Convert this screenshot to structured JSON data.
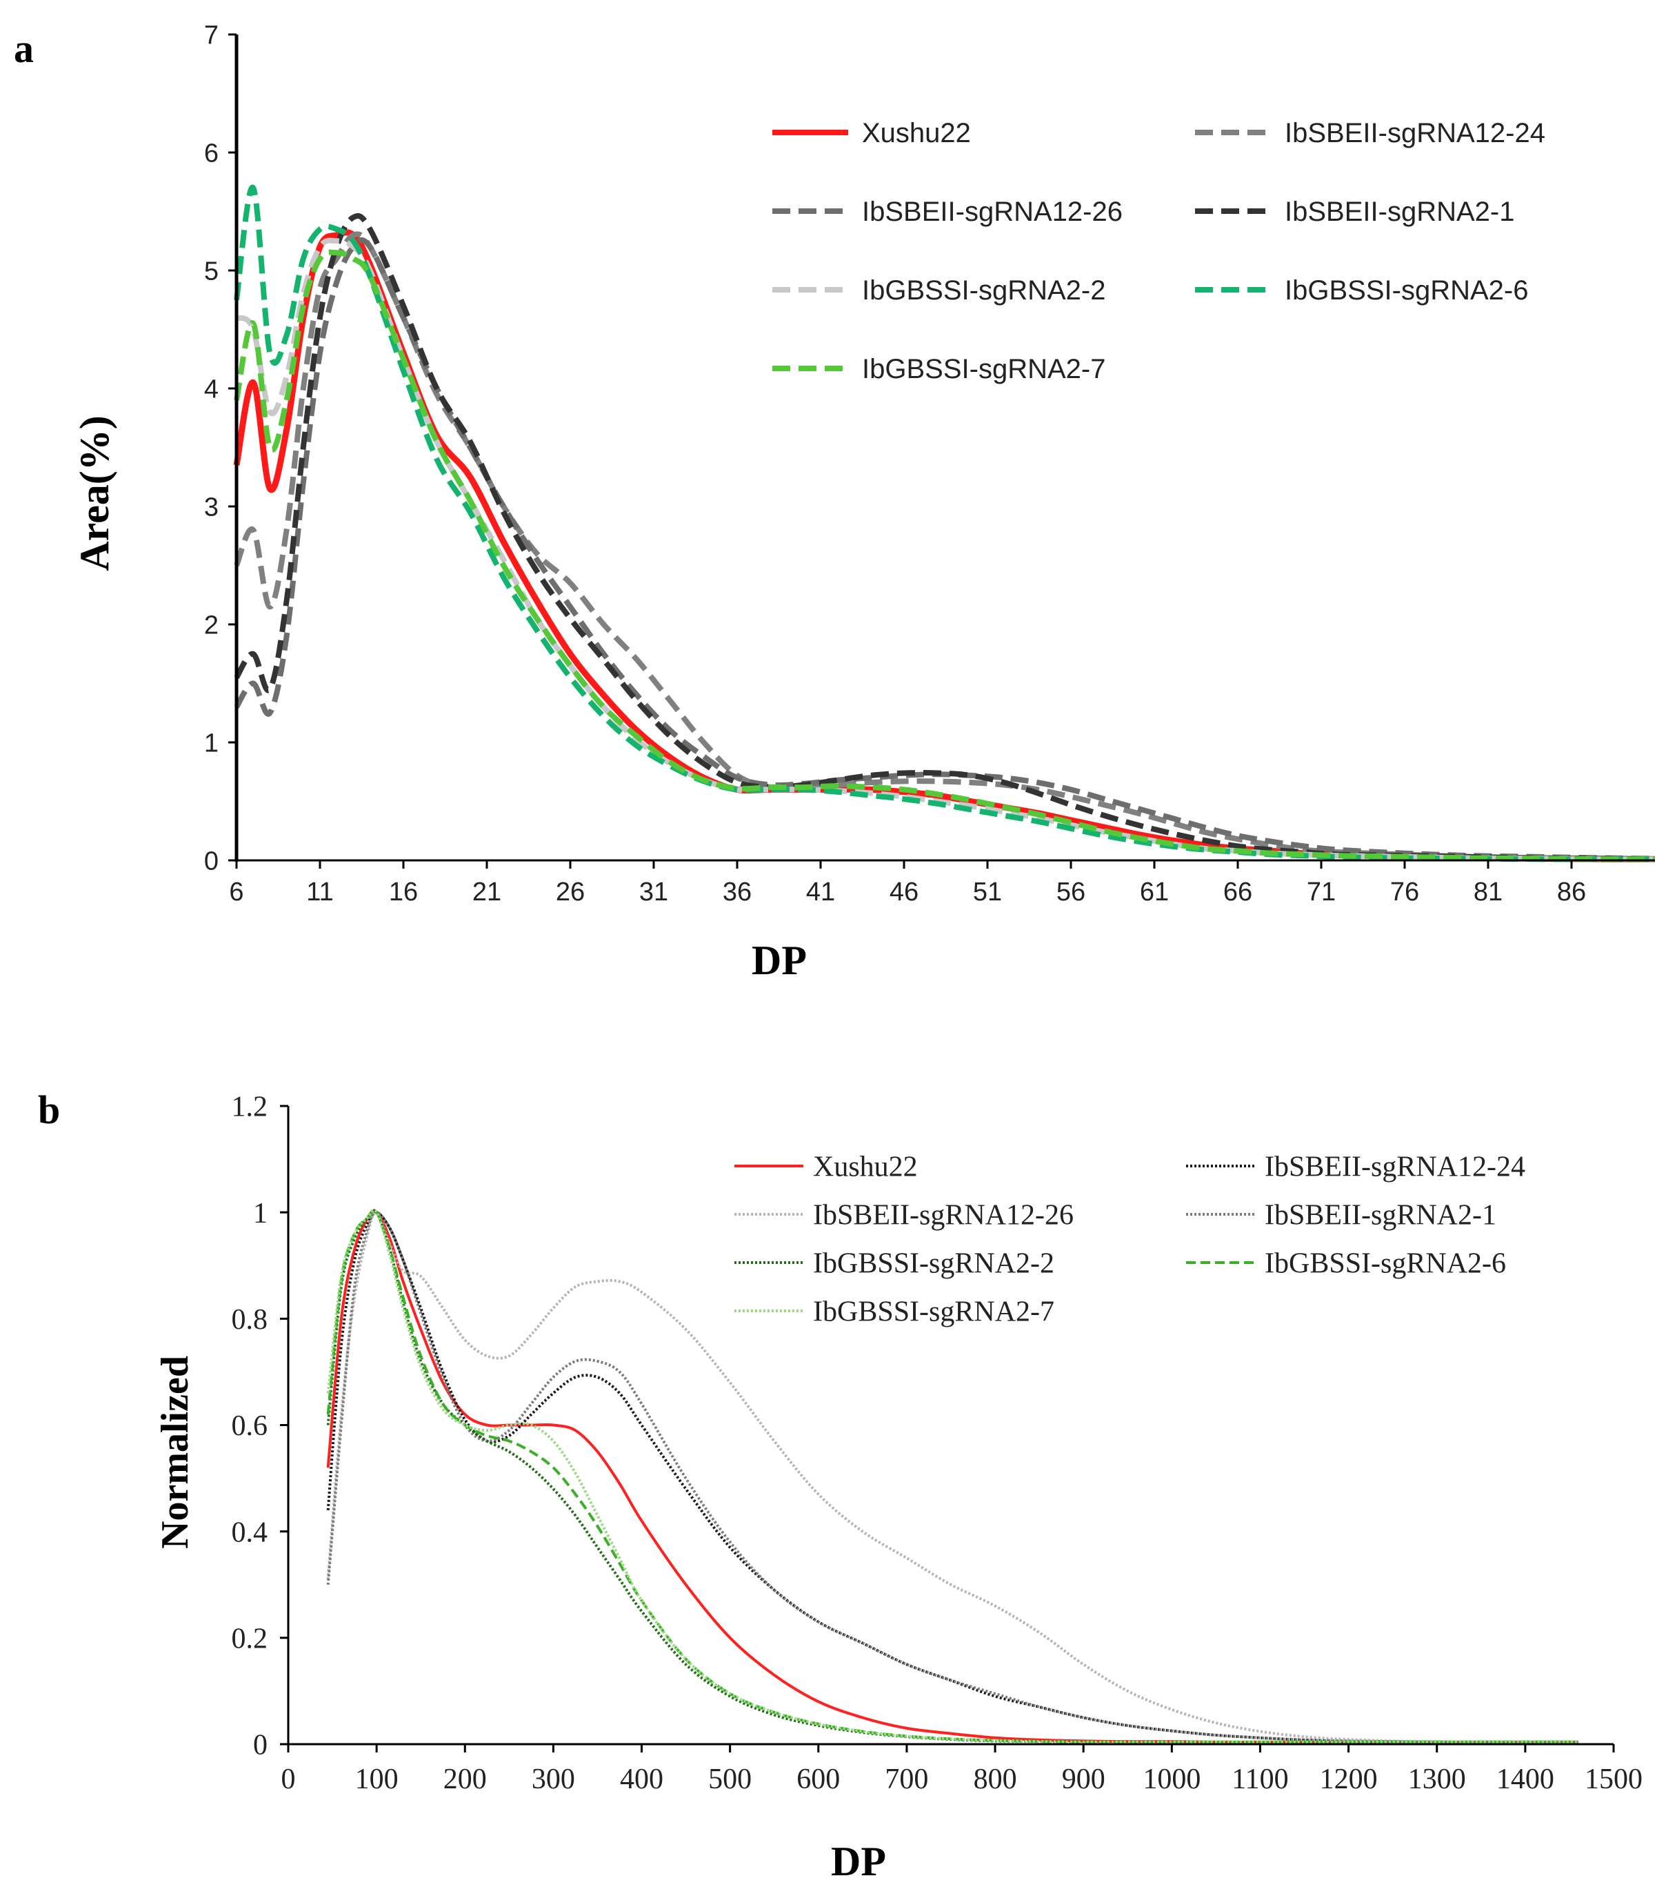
{
  "panels": [
    {
      "letter": "a"
    },
    {
      "letter": "b"
    }
  ],
  "chart_data": [
    {
      "type": "line",
      "panel": "a",
      "title": "",
      "xlabel": "DP",
      "ylabel": "Area(%)",
      "xlim": [
        6,
        91
      ],
      "ylim": [
        0,
        7
      ],
      "xticks": [
        6,
        11,
        16,
        21,
        26,
        31,
        36,
        41,
        46,
        51,
        56,
        61,
        66,
        71,
        76,
        81,
        86
      ],
      "yticks": [
        0,
        1,
        2,
        3,
        4,
        5,
        6,
        7
      ],
      "x": [
        6,
        7,
        8,
        9,
        10,
        11,
        12,
        13,
        14,
        16,
        18,
        20,
        22,
        24,
        26,
        28,
        30,
        32,
        34,
        36,
        38,
        40,
        42,
        44,
        46,
        48,
        50,
        52,
        54,
        56,
        58,
        60,
        62,
        64,
        66,
        68,
        70,
        72,
        76,
        80,
        84,
        88,
        91
      ],
      "series": [
        {
          "name": "Xushu22",
          "color": "#ff1a1a",
          "style": "solid",
          "values": [
            3.35,
            4.05,
            3.15,
            3.65,
            4.6,
            5.2,
            5.3,
            5.3,
            5.05,
            4.3,
            3.6,
            3.25,
            2.7,
            2.2,
            1.75,
            1.4,
            1.1,
            0.87,
            0.7,
            0.6,
            0.6,
            0.6,
            0.6,
            0.6,
            0.58,
            0.55,
            0.5,
            0.45,
            0.4,
            0.34,
            0.28,
            0.22,
            0.17,
            0.13,
            0.1,
            0.08,
            0.06,
            0.05,
            0.03,
            0.02,
            0.015,
            0.01,
            0.01
          ]
        },
        {
          "name": "IbSBEII-sgRNA12-24",
          "color": "#808080",
          "style": "dashed",
          "values": [
            2.5,
            2.8,
            2.15,
            2.8,
            4.0,
            4.85,
            5.1,
            5.3,
            5.2,
            4.6,
            3.95,
            3.5,
            3.0,
            2.6,
            2.35,
            2.0,
            1.7,
            1.35,
            1.0,
            0.72,
            0.62,
            0.62,
            0.64,
            0.66,
            0.67,
            0.67,
            0.66,
            0.64,
            0.6,
            0.54,
            0.47,
            0.4,
            0.32,
            0.24,
            0.18,
            0.13,
            0.09,
            0.07,
            0.05,
            0.03,
            0.02,
            0.015,
            0.01
          ]
        },
        {
          "name": "IbSBEII-sgRNA12-26",
          "color": "#6e6e6e",
          "style": "dashed",
          "values": [
            1.3,
            1.5,
            1.25,
            1.9,
            3.2,
            4.3,
            4.9,
            5.2,
            5.2,
            4.6,
            4.0,
            3.5,
            3.0,
            2.55,
            2.15,
            1.75,
            1.4,
            1.1,
            0.88,
            0.7,
            0.64,
            0.65,
            0.68,
            0.7,
            0.72,
            0.73,
            0.72,
            0.7,
            0.66,
            0.6,
            0.52,
            0.44,
            0.36,
            0.28,
            0.21,
            0.16,
            0.12,
            0.09,
            0.06,
            0.04,
            0.03,
            0.02,
            0.015
          ]
        },
        {
          "name": "IbSBEII-sgRNA2-1",
          "color": "#333333",
          "style": "dashed",
          "values": [
            1.55,
            1.75,
            1.45,
            2.2,
            3.5,
            4.6,
            5.2,
            5.45,
            5.35,
            4.7,
            4.0,
            3.55,
            2.95,
            2.45,
            2.05,
            1.7,
            1.35,
            1.05,
            0.82,
            0.66,
            0.62,
            0.64,
            0.68,
            0.72,
            0.74,
            0.74,
            0.72,
            0.66,
            0.57,
            0.47,
            0.38,
            0.3,
            0.23,
            0.17,
            0.12,
            0.09,
            0.07,
            0.05,
            0.04,
            0.03,
            0.02,
            0.015,
            0.01
          ]
        },
        {
          "name": "IbGBSSI-sgRNA2-2",
          "color": "#c8c8c8",
          "style": "dashed",
          "values": [
            4.6,
            4.5,
            3.8,
            4.1,
            4.8,
            5.2,
            5.25,
            5.2,
            5.0,
            4.25,
            3.55,
            3.05,
            2.55,
            2.05,
            1.65,
            1.3,
            1.02,
            0.82,
            0.68,
            0.6,
            0.6,
            0.6,
            0.59,
            0.57,
            0.54,
            0.5,
            0.46,
            0.41,
            0.36,
            0.3,
            0.24,
            0.19,
            0.14,
            0.1,
            0.08,
            0.06,
            0.05,
            0.04,
            0.03,
            0.02,
            0.015,
            0.01,
            0.01
          ]
        },
        {
          "name": "IbGBSSI-sgRNA2-6",
          "color": "#14b46e",
          "style": "dashed",
          "values": [
            4.75,
            5.7,
            4.3,
            4.45,
            5.1,
            5.35,
            5.35,
            5.25,
            4.95,
            4.15,
            3.4,
            2.95,
            2.4,
            1.95,
            1.55,
            1.22,
            0.97,
            0.8,
            0.67,
            0.6,
            0.6,
            0.6,
            0.58,
            0.55,
            0.52,
            0.48,
            0.43,
            0.38,
            0.33,
            0.27,
            0.21,
            0.16,
            0.12,
            0.09,
            0.07,
            0.05,
            0.04,
            0.03,
            0.02,
            0.015,
            0.01,
            0.01,
            0.01
          ]
        },
        {
          "name": "IbGBSSI-sgRNA2-7",
          "color": "#55c83a",
          "style": "dashed",
          "values": [
            3.9,
            4.55,
            3.5,
            3.9,
            4.7,
            5.1,
            5.15,
            5.1,
            4.95,
            4.25,
            3.55,
            3.05,
            2.5,
            2.05,
            1.65,
            1.3,
            1.05,
            0.83,
            0.68,
            0.61,
            0.62,
            0.62,
            0.63,
            0.62,
            0.6,
            0.56,
            0.51,
            0.45,
            0.39,
            0.32,
            0.25,
            0.19,
            0.14,
            0.1,
            0.08,
            0.06,
            0.05,
            0.04,
            0.03,
            0.02,
            0.015,
            0.01,
            0.01
          ]
        }
      ]
    },
    {
      "type": "line",
      "panel": "b",
      "title": "",
      "xlabel": "DP",
      "ylabel": "Normalized",
      "xlim": [
        0,
        1500
      ],
      "ylim": [
        0,
        1.2
      ],
      "xticks": [
        0,
        100,
        200,
        300,
        400,
        500,
        600,
        700,
        800,
        900,
        1000,
        1100,
        1200,
        1300,
        1400,
        1500
      ],
      "yticks": [
        "0",
        "0.2",
        "0.4",
        "0.6",
        "0.8",
        "1",
        "1.2"
      ],
      "x": [
        45,
        60,
        75,
        90,
        100,
        115,
        130,
        150,
        175,
        200,
        225,
        250,
        275,
        300,
        325,
        350,
        375,
        400,
        450,
        500,
        550,
        600,
        650,
        700,
        750,
        800,
        850,
        900,
        950,
        1000,
        1050,
        1100,
        1150,
        1200,
        1250,
        1300,
        1350,
        1400,
        1460
      ],
      "series": [
        {
          "name": "Xushu22",
          "color": "#ff2020",
          "style": "solid",
          "values": [
            0.52,
            0.8,
            0.93,
            0.99,
            1.0,
            0.95,
            0.87,
            0.78,
            0.68,
            0.62,
            0.6,
            0.6,
            0.6,
            0.6,
            0.59,
            0.55,
            0.49,
            0.42,
            0.3,
            0.2,
            0.13,
            0.08,
            0.05,
            0.03,
            0.02,
            0.012,
            0.008,
            0.006,
            0.005,
            0.005,
            0.004,
            0.004,
            0.004,
            0.004,
            0.004,
            0.004,
            0.004,
            0.004,
            0.004
          ]
        },
        {
          "name": "IbSBEII-sgRNA12-24",
          "color": "#1a1a1a",
          "style": "dotted",
          "values": [
            0.44,
            0.75,
            0.91,
            0.98,
            1.0,
            0.97,
            0.91,
            0.82,
            0.7,
            0.61,
            0.57,
            0.58,
            0.62,
            0.66,
            0.69,
            0.69,
            0.66,
            0.6,
            0.48,
            0.37,
            0.29,
            0.23,
            0.19,
            0.15,
            0.12,
            0.09,
            0.07,
            0.05,
            0.035,
            0.025,
            0.017,
            0.012,
            0.008,
            0.006,
            0.005,
            0.004,
            0.004,
            0.004,
            0.004
          ]
        },
        {
          "name": "IbSBEII-sgRNA12-26",
          "color": "#b4b4b4",
          "style": "dotted",
          "values": [
            0.31,
            0.62,
            0.84,
            0.96,
            1.0,
            0.94,
            0.89,
            0.88,
            0.82,
            0.76,
            0.73,
            0.73,
            0.77,
            0.82,
            0.86,
            0.87,
            0.87,
            0.85,
            0.78,
            0.68,
            0.57,
            0.47,
            0.4,
            0.35,
            0.3,
            0.26,
            0.21,
            0.15,
            0.1,
            0.065,
            0.04,
            0.024,
            0.014,
            0.009,
            0.006,
            0.005,
            0.004,
            0.004,
            0.004
          ]
        },
        {
          "name": "IbSBEII-sgRNA2-1",
          "color": "#7a7a7a",
          "style": "dotted",
          "values": [
            0.3,
            0.6,
            0.86,
            0.97,
            1.0,
            0.97,
            0.91,
            0.81,
            0.69,
            0.6,
            0.57,
            0.59,
            0.64,
            0.69,
            0.72,
            0.72,
            0.7,
            0.64,
            0.5,
            0.38,
            0.29,
            0.23,
            0.19,
            0.15,
            0.12,
            0.095,
            0.07,
            0.05,
            0.035,
            0.025,
            0.017,
            0.012,
            0.008,
            0.006,
            0.005,
            0.004,
            0.004,
            0.004,
            0.004
          ]
        },
        {
          "name": "IbGBSSI-sgRNA2-2",
          "color": "#1f6e14",
          "style": "dotted",
          "values": [
            0.6,
            0.86,
            0.95,
            0.99,
            1.0,
            0.93,
            0.83,
            0.72,
            0.64,
            0.6,
            0.57,
            0.55,
            0.52,
            0.48,
            0.43,
            0.37,
            0.31,
            0.25,
            0.15,
            0.09,
            0.055,
            0.035,
            0.022,
            0.014,
            0.009,
            0.006,
            0.005,
            0.004,
            0.004,
            0.004,
            0.004,
            0.004,
            0.004,
            0.004,
            0.004,
            0.004,
            0.004,
            0.004,
            0.004
          ]
        },
        {
          "name": "IbGBSSI-sgRNA2-6",
          "color": "#3caf28",
          "style": "dashed",
          "values": [
            0.62,
            0.87,
            0.96,
            0.99,
            1.0,
            0.93,
            0.84,
            0.73,
            0.64,
            0.6,
            0.58,
            0.57,
            0.55,
            0.52,
            0.47,
            0.41,
            0.34,
            0.27,
            0.16,
            0.095,
            0.06,
            0.038,
            0.024,
            0.015,
            0.01,
            0.007,
            0.005,
            0.004,
            0.004,
            0.004,
            0.004,
            0.004,
            0.004,
            0.004,
            0.004,
            0.004,
            0.004,
            0.004,
            0.004
          ]
        },
        {
          "name": "IbGBSSI-sgRNA2-7",
          "color": "#96dc7d",
          "style": "dotted",
          "values": [
            0.66,
            0.88,
            0.96,
            0.99,
            1.0,
            0.92,
            0.82,
            0.71,
            0.63,
            0.6,
            0.59,
            0.6,
            0.6,
            0.57,
            0.51,
            0.43,
            0.35,
            0.27,
            0.16,
            0.095,
            0.06,
            0.038,
            0.024,
            0.015,
            0.01,
            0.007,
            0.005,
            0.004,
            0.004,
            0.004,
            0.004,
            0.004,
            0.004,
            0.004,
            0.004,
            0.004,
            0.004,
            0.004,
            0.004
          ]
        }
      ]
    }
  ]
}
